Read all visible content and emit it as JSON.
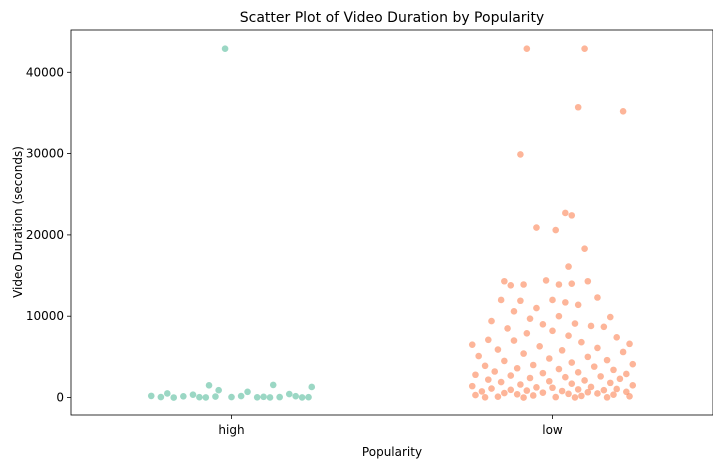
{
  "chart_data": {
    "type": "scatter",
    "title": "Scatter Plot of Video Duration by Popularity",
    "xlabel": "Popularity",
    "ylabel": "Video Duration (seconds)",
    "categories": [
      "high",
      "low"
    ],
    "ylim": [
      -2150,
      45200
    ],
    "yticks": [
      0,
      10000,
      20000,
      30000,
      40000
    ],
    "grid": false,
    "legend": "none",
    "colors": {
      "high": "#66c2a5",
      "low": "#fc8d62"
    },
    "series": [
      {
        "category": "high",
        "color": "#66c2a5",
        "points": [
          {
            "x": -0.02,
            "y": 42900
          },
          {
            "x": -0.07,
            "y": 1500
          },
          {
            "x": 0.13,
            "y": 1550
          },
          {
            "x": 0.25,
            "y": 1300
          },
          {
            "x": -0.04,
            "y": 900
          },
          {
            "x": 0.05,
            "y": 700
          },
          {
            "x": -0.2,
            "y": 500
          },
          {
            "x": -0.12,
            "y": 350
          },
          {
            "x": 0.18,
            "y": 420
          },
          {
            "x": -0.25,
            "y": 200
          },
          {
            "x": -0.15,
            "y": 150
          },
          {
            "x": -0.05,
            "y": 120
          },
          {
            "x": 0.03,
            "y": 180
          },
          {
            "x": 0.1,
            "y": 90
          },
          {
            "x": 0.2,
            "y": 160
          },
          {
            "x": -0.22,
            "y": 60
          },
          {
            "x": -0.1,
            "y": 40
          },
          {
            "x": 0.0,
            "y": 60
          },
          {
            "x": 0.08,
            "y": 30
          },
          {
            "x": 0.15,
            "y": 50
          },
          {
            "x": 0.24,
            "y": 40
          },
          {
            "x": -0.18,
            "y": 0
          },
          {
            "x": -0.08,
            "y": 10
          },
          {
            "x": 0.12,
            "y": 5
          },
          {
            "x": 0.22,
            "y": 10
          }
        ]
      },
      {
        "category": "low",
        "color": "#fc8d62",
        "points": [
          {
            "x": -0.08,
            "y": 42900
          },
          {
            "x": 0.1,
            "y": 42900
          },
          {
            "x": 0.08,
            "y": 35700
          },
          {
            "x": 0.22,
            "y": 35200
          },
          {
            "x": -0.1,
            "y": 29900
          },
          {
            "x": 0.04,
            "y": 22700
          },
          {
            "x": 0.06,
            "y": 22400
          },
          {
            "x": -0.05,
            "y": 20900
          },
          {
            "x": 0.01,
            "y": 20600
          },
          {
            "x": 0.1,
            "y": 18300
          },
          {
            "x": 0.05,
            "y": 16100
          },
          {
            "x": -0.02,
            "y": 14400
          },
          {
            "x": -0.15,
            "y": 14300
          },
          {
            "x": 0.11,
            "y": 14300
          },
          {
            "x": -0.13,
            "y": 13800
          },
          {
            "x": -0.09,
            "y": 13900
          },
          {
            "x": 0.02,
            "y": 13900
          },
          {
            "x": 0.06,
            "y": 14000
          },
          {
            "x": 0.14,
            "y": 12300
          },
          {
            "x": 0.0,
            "y": 12000
          },
          {
            "x": -0.1,
            "y": 11900
          },
          {
            "x": -0.16,
            "y": 12000
          },
          {
            "x": 0.04,
            "y": 11700
          },
          {
            "x": 0.08,
            "y": 11400
          },
          {
            "x": -0.05,
            "y": 11000
          },
          {
            "x": -0.12,
            "y": 10600
          },
          {
            "x": 0.02,
            "y": 10000
          },
          {
            "x": -0.07,
            "y": 9700
          },
          {
            "x": 0.18,
            "y": 9900
          },
          {
            "x": -0.19,
            "y": 9400
          },
          {
            "x": 0.07,
            "y": 9100
          },
          {
            "x": -0.03,
            "y": 9000
          },
          {
            "x": 0.12,
            "y": 8800
          },
          {
            "x": 0.16,
            "y": 8700
          },
          {
            "x": -0.14,
            "y": 8500
          },
          {
            "x": 0.0,
            "y": 8200
          },
          {
            "x": -0.08,
            "y": 7900
          },
          {
            "x": 0.05,
            "y": 7600
          },
          {
            "x": 0.2,
            "y": 7400
          },
          {
            "x": -0.2,
            "y": 7100
          },
          {
            "x": -0.12,
            "y": 7000
          },
          {
            "x": 0.09,
            "y": 6800
          },
          {
            "x": 0.24,
            "y": 6600
          },
          {
            "x": -0.25,
            "y": 6500
          },
          {
            "x": -0.04,
            "y": 6300
          },
          {
            "x": 0.14,
            "y": 6100
          },
          {
            "x": -0.17,
            "y": 5900
          },
          {
            "x": 0.03,
            "y": 5800
          },
          {
            "x": 0.22,
            "y": 5600
          },
          {
            "x": -0.09,
            "y": 5400
          },
          {
            "x": -0.23,
            "y": 5100
          },
          {
            "x": 0.11,
            "y": 5000
          },
          {
            "x": -0.01,
            "y": 4800
          },
          {
            "x": 0.17,
            "y": 4600
          },
          {
            "x": -0.15,
            "y": 4500
          },
          {
            "x": 0.06,
            "y": 4300
          },
          {
            "x": 0.25,
            "y": 4100
          },
          {
            "x": -0.06,
            "y": 4000
          },
          {
            "x": -0.21,
            "y": 3900
          },
          {
            "x": 0.13,
            "y": 3800
          },
          {
            "x": -0.11,
            "y": 3600
          },
          {
            "x": 0.02,
            "y": 3500
          },
          {
            "x": 0.19,
            "y": 3400
          },
          {
            "x": -0.18,
            "y": 3200
          },
          {
            "x": 0.08,
            "y": 3100
          },
          {
            "x": -0.03,
            "y": 3000
          },
          {
            "x": 0.23,
            "y": 2900
          },
          {
            "x": -0.24,
            "y": 2800
          },
          {
            "x": -0.13,
            "y": 2700
          },
          {
            "x": 0.15,
            "y": 2600
          },
          {
            "x": 0.04,
            "y": 2500
          },
          {
            "x": -0.07,
            "y": 2400
          },
          {
            "x": 0.21,
            "y": 2300
          },
          {
            "x": -0.2,
            "y": 2200
          },
          {
            "x": 0.1,
            "y": 2100
          },
          {
            "x": -0.01,
            "y": 2000
          },
          {
            "x": -0.16,
            "y": 1900
          },
          {
            "x": 0.18,
            "y": 1800
          },
          {
            "x": 0.06,
            "y": 1700
          },
          {
            "x": -0.1,
            "y": 1600
          },
          {
            "x": 0.25,
            "y": 1500
          },
          {
            "x": -0.25,
            "y": 1400
          },
          {
            "x": 0.12,
            "y": 1300
          },
          {
            "x": -0.05,
            "y": 1250
          },
          {
            "x": 0.0,
            "y": 1200
          },
          {
            "x": -0.19,
            "y": 1100
          },
          {
            "x": 0.2,
            "y": 1050
          },
          {
            "x": 0.08,
            "y": 1000
          },
          {
            "x": -0.13,
            "y": 950
          },
          {
            "x": 0.16,
            "y": 900
          },
          {
            "x": -0.08,
            "y": 850
          },
          {
            "x": 0.03,
            "y": 800
          },
          {
            "x": -0.22,
            "y": 750
          },
          {
            "x": 0.23,
            "y": 700
          },
          {
            "x": 0.11,
            "y": 650
          },
          {
            "x": -0.03,
            "y": 600
          },
          {
            "x": -0.15,
            "y": 550
          },
          {
            "x": 0.14,
            "y": 500
          },
          {
            "x": 0.05,
            "y": 450
          },
          {
            "x": -0.11,
            "y": 400
          },
          {
            "x": 0.19,
            "y": 350
          },
          {
            "x": -0.24,
            "y": 300
          },
          {
            "x": -0.06,
            "y": 250
          },
          {
            "x": 0.09,
            "y": 200
          },
          {
            "x": 0.24,
            "y": 150
          },
          {
            "x": -0.17,
            "y": 100
          },
          {
            "x": 0.01,
            "y": 50
          },
          {
            "x": -0.09,
            "y": 0
          },
          {
            "x": 0.17,
            "y": 20
          },
          {
            "x": -0.21,
            "y": 30
          },
          {
            "x": 0.07,
            "y": 10
          }
        ]
      }
    ]
  }
}
